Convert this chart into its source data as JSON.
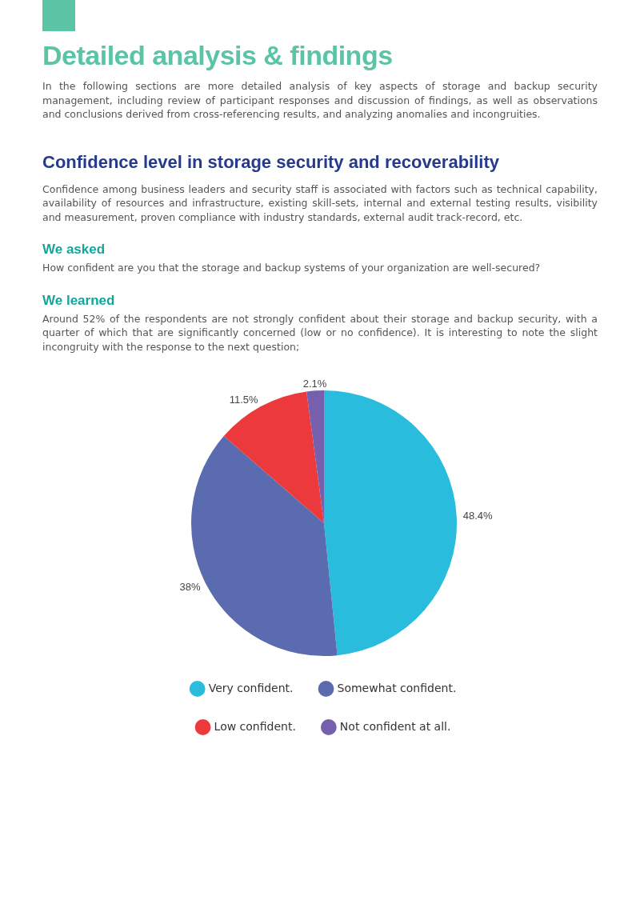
{
  "chart_data": {
    "type": "pie",
    "title": "Detailed analysis & findings",
    "subtitle": "Confidence level in storage security and recoverability",
    "annotations": [
      "In the following sections are more detailed analysis of key aspects of storage and backup security management, including review of participant responses and discussion of findings, as well as observations and conclusions derived from cross-referencing results, and analyzing anomalies and incongruities.",
      "Confidence among business leaders and security staff is associated with factors such as technical capability, availability of resources and infrastructure, existing skill-sets, internal and external testing results, visibility and measurement, proven compliance with industry standards, external audit track-record, etc.",
      "We asked",
      "How confident are you that the storage and backup systems of your organization are well-secured?",
      "We learned",
      "Around 52% of the respondents are not strongly confident about their storage and backup security, with a quarter of which that are significantly concerned (low or no confidence).  It is interesting to note the slight incongruity with the response to the next question;"
    ],
    "categories": [
      "Very confident.",
      "Somewhat confident.",
      "Low confident.",
      "Not confident at all."
    ],
    "values": [
      48.4,
      38,
      11.5,
      2.1
    ],
    "value_labels": [
      "48.4%",
      "38%",
      "11.5%",
      "2.1%"
    ],
    "colors": [
      "#29bcdc",
      "#5a6bb0",
      "#ec3a3c",
      "#7660ad"
    ],
    "legend": "bottom"
  }
}
